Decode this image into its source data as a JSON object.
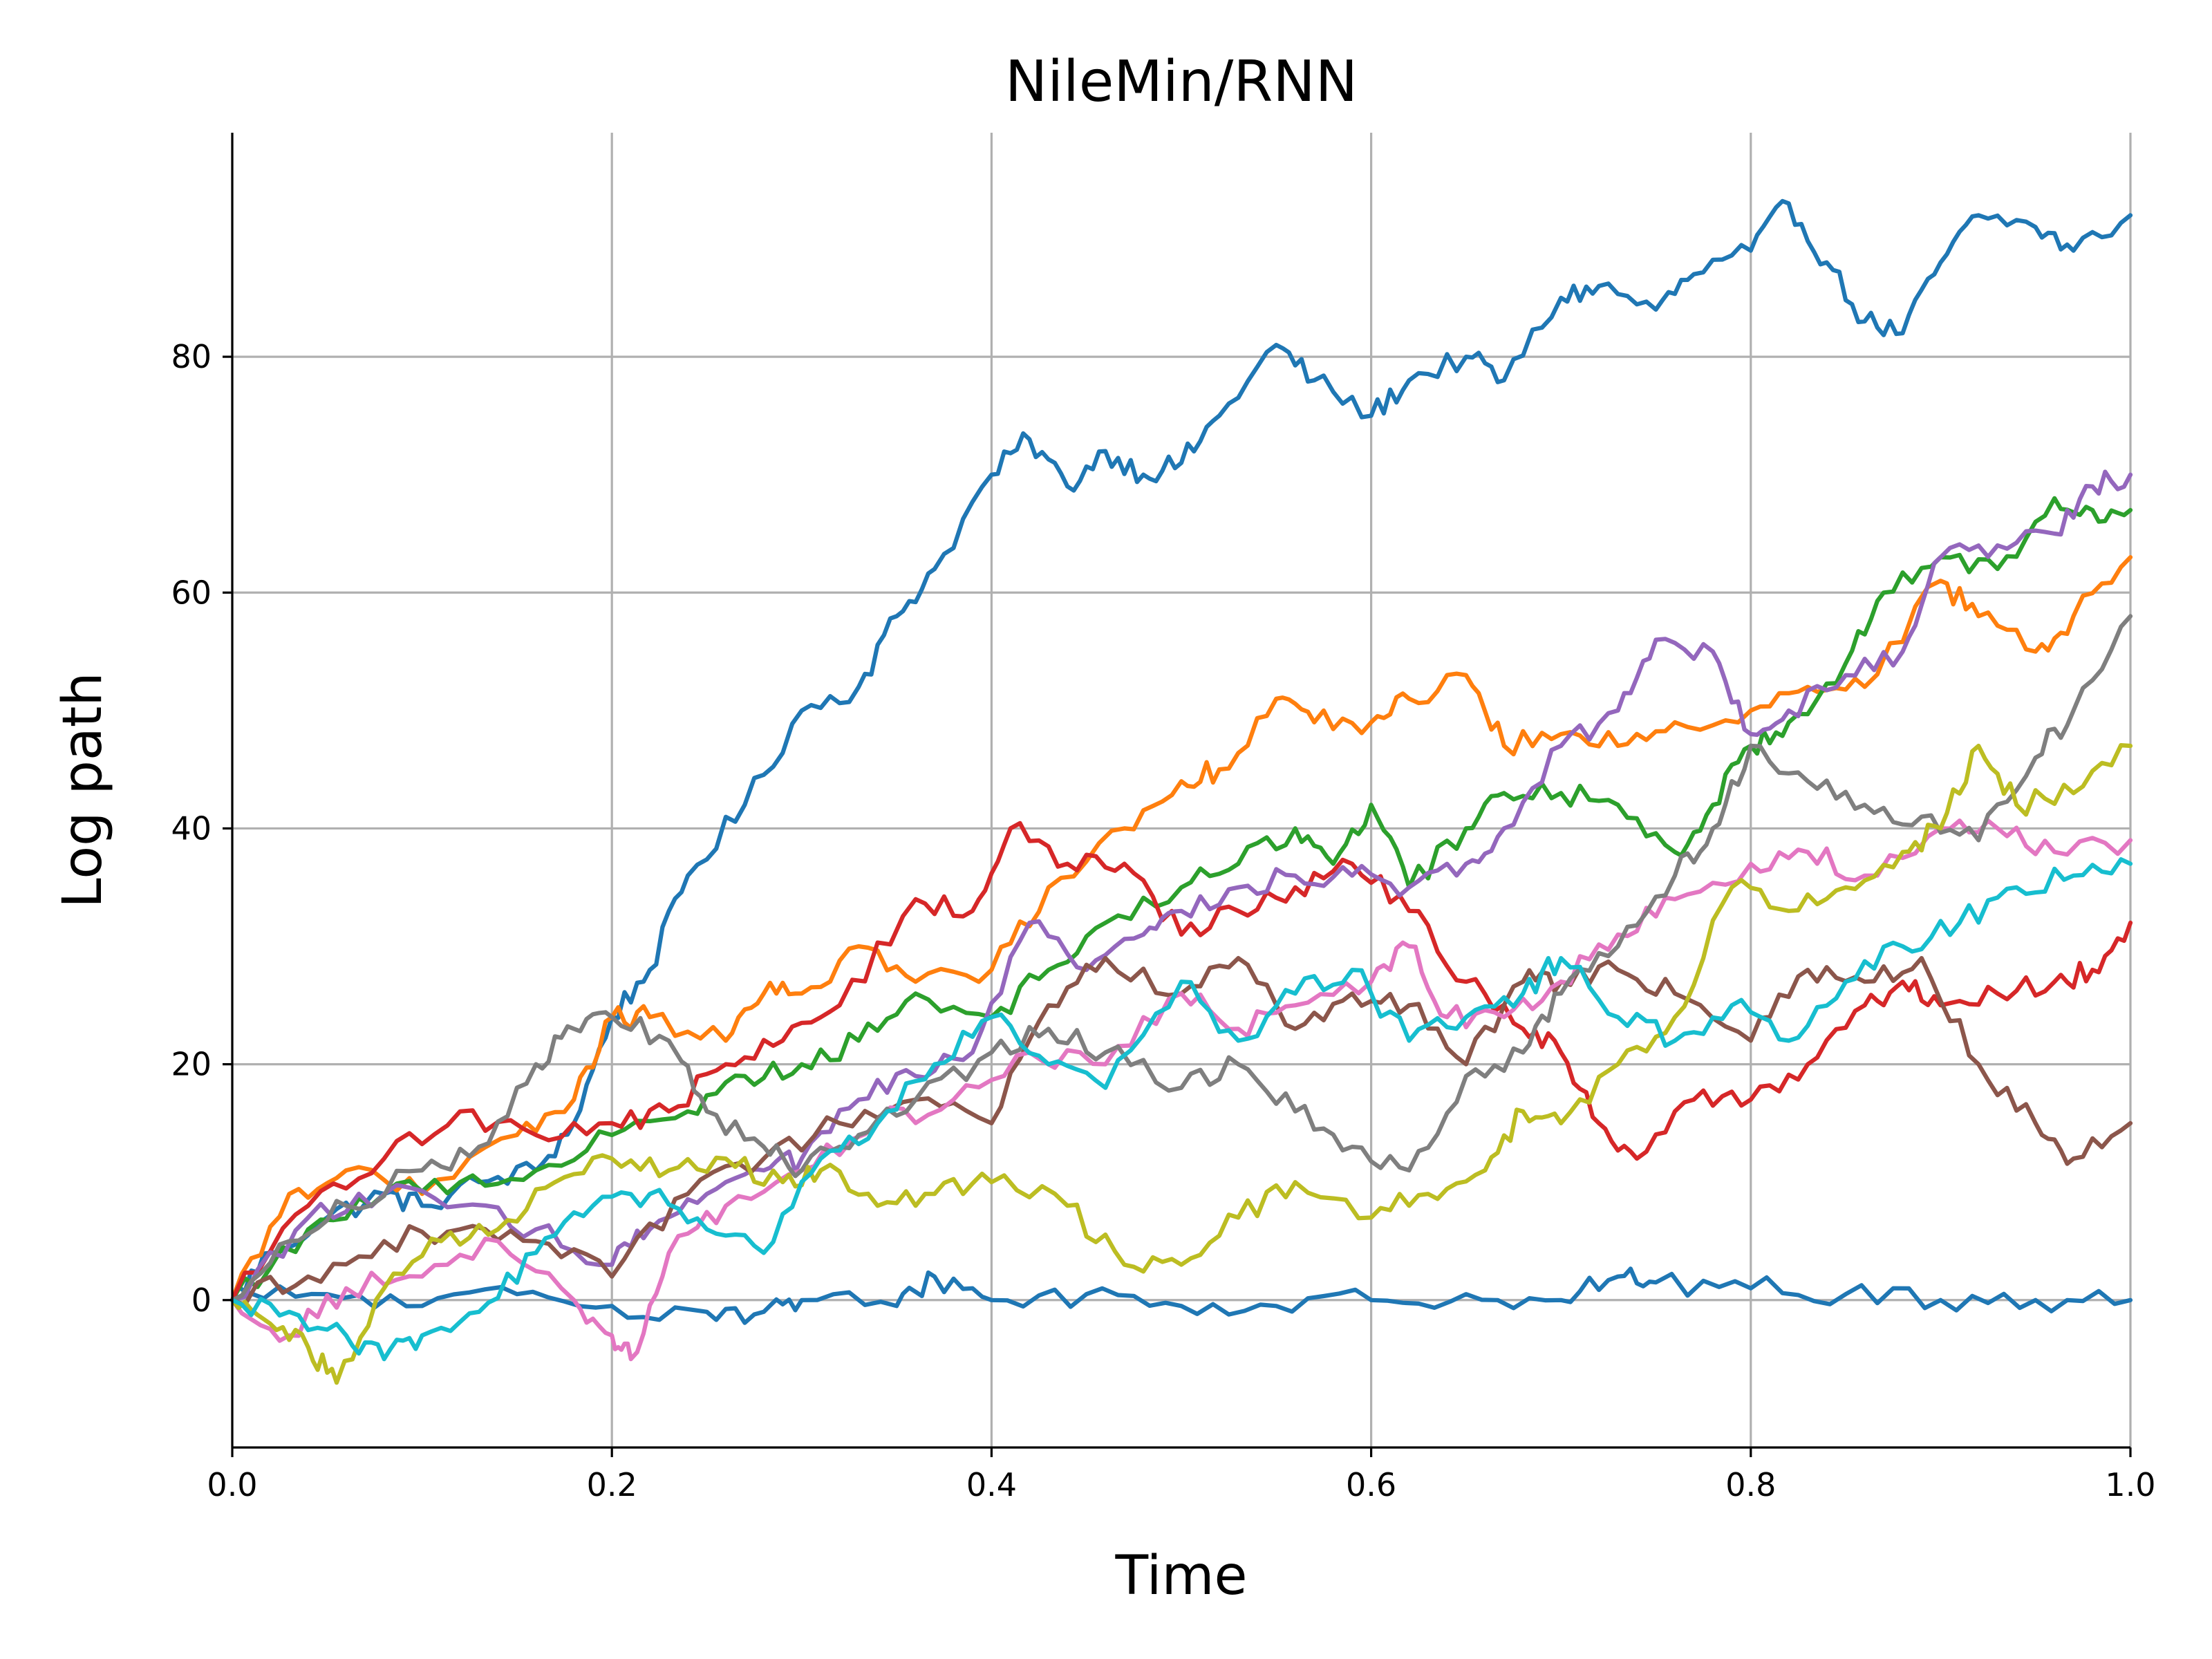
{
  "chart_data": {
    "type": "line",
    "title": "NileMin/RNN",
    "xlabel": "Time",
    "ylabel": "Log path",
    "xlim": [
      0.0,
      1.0
    ],
    "ylim": [
      -12.5,
      99
    ],
    "xticks": [
      0.0,
      0.2,
      0.4,
      0.6,
      0.8,
      1.0
    ],
    "xtick_labels": [
      "0.0",
      "0.2",
      "0.4",
      "0.6",
      "0.8",
      "1.0"
    ],
    "yticks": [
      0,
      20,
      40,
      60,
      80
    ],
    "ytick_labels": [
      "0",
      "20",
      "40",
      "60",
      "80"
    ],
    "grid": true,
    "legend": "none",
    "series": [
      {
        "color": "#1f77b4",
        "x": [
          0,
          0.02,
          0.05,
          0.08,
          0.1,
          0.13,
          0.16,
          0.18,
          0.2,
          0.22,
          0.24,
          0.27,
          0.3,
          0.33,
          0.35,
          0.37,
          0.4,
          0.42,
          0.44,
          0.46,
          0.48,
          0.5,
          0.52,
          0.55,
          0.57,
          0.6,
          0.62,
          0.65,
          0.67,
          0.7,
          0.72,
          0.75,
          0.77,
          0.8,
          0.82,
          0.84,
          0.86,
          0.88,
          0.9,
          0.92,
          0.95,
          0.97,
          1.0
        ],
        "y": [
          0,
          4,
          7,
          9,
          8,
          10,
          11,
          15,
          24,
          28,
          36,
          42,
          50,
          52,
          58,
          62,
          70,
          73,
          69,
          72,
          70,
          71,
          75,
          81,
          78,
          75,
          78,
          80,
          78,
          85,
          86,
          84,
          87,
          89,
          93,
          88,
          83,
          82,
          88,
          92,
          91,
          89,
          92
        ]
      },
      {
        "color": "#1f77b4",
        "x": [
          0,
          0.05,
          0.1,
          0.15,
          0.2,
          0.25,
          0.28,
          0.3,
          0.35,
          0.37,
          0.4,
          0.45,
          0.5,
          0.55,
          0.6,
          0.65,
          0.7,
          0.73,
          0.75,
          0.8,
          0.85,
          0.9,
          0.95,
          1.0
        ],
        "y": [
          0,
          0.5,
          -0.5,
          0.5,
          -0.5,
          -1,
          -1,
          0,
          -0.5,
          2,
          0,
          0.5,
          -0.5,
          -0.5,
          0,
          0.5,
          0,
          2,
          1.5,
          1,
          0.5,
          0,
          0,
          0
        ]
      },
      {
        "color": "#ff7f0e",
        "x": [
          0,
          0.03,
          0.06,
          0.1,
          0.15,
          0.18,
          0.2,
          0.22,
          0.26,
          0.28,
          0.3,
          0.33,
          0.36,
          0.4,
          0.43,
          0.47,
          0.5,
          0.52,
          0.55,
          0.57,
          0.6,
          0.62,
          0.65,
          0.67,
          0.7,
          0.73,
          0.76,
          0.8,
          0.83,
          0.86,
          0.9,
          0.92,
          0.95,
          0.97,
          1.0
        ],
        "y": [
          0,
          9,
          11,
          9,
          14,
          17,
          24,
          24,
          22,
          26,
          26,
          30,
          27,
          28,
          35,
          40,
          44,
          45,
          51,
          49,
          49,
          51,
          53,
          47,
          48,
          47,
          49,
          50,
          52,
          52,
          61,
          58,
          55,
          58,
          63
        ]
      },
      {
        "color": "#2ca02c",
        "x": [
          0,
          0.04,
          0.08,
          0.12,
          0.16,
          0.2,
          0.24,
          0.27,
          0.3,
          0.33,
          0.36,
          0.4,
          0.43,
          0.46,
          0.5,
          0.53,
          0.56,
          0.58,
          0.6,
          0.62,
          0.65,
          0.67,
          0.7,
          0.73,
          0.76,
          0.78,
          0.8,
          0.82,
          0.85,
          0.87,
          0.9,
          0.93,
          0.96,
          0.98,
          1.0
        ],
        "y": [
          0,
          6,
          9,
          10,
          11,
          14,
          16,
          19,
          20,
          22,
          26,
          24,
          28,
          32,
          35,
          37,
          40,
          37,
          42,
          35,
          40,
          43,
          43,
          42,
          38,
          42,
          47,
          49,
          54,
          60,
          63,
          62,
          68,
          67,
          67
        ]
      },
      {
        "color": "#d62728",
        "x": [
          0,
          0.04,
          0.08,
          0.12,
          0.16,
          0.2,
          0.23,
          0.26,
          0.29,
          0.32,
          0.36,
          0.39,
          0.41,
          0.44,
          0.47,
          0.5,
          0.53,
          0.56,
          0.59,
          0.62,
          0.65,
          0.68,
          0.7,
          0.72,
          0.74,
          0.77,
          0.8,
          0.83,
          0.86,
          0.88,
          0.9,
          0.93,
          0.96,
          0.98,
          1.0
        ],
        "y": [
          0,
          8,
          12,
          16,
          14,
          15,
          16,
          20,
          22,
          25,
          34,
          33,
          40,
          37,
          37,
          31,
          33,
          35,
          37,
          33,
          27,
          23,
          21,
          15,
          12,
          17,
          17,
          20,
          25,
          27,
          25,
          26,
          27,
          28,
          32
        ]
      },
      {
        "color": "#9467bd",
        "x": [
          0,
          0.04,
          0.08,
          0.12,
          0.16,
          0.2,
          0.22,
          0.25,
          0.28,
          0.3,
          0.33,
          0.36,
          0.39,
          0.42,
          0.45,
          0.48,
          0.5,
          0.53,
          0.56,
          0.59,
          0.62,
          0.65,
          0.67,
          0.7,
          0.73,
          0.75,
          0.78,
          0.8,
          0.82,
          0.85,
          0.88,
          0.9,
          0.93,
          0.96,
          0.98,
          1.0
        ],
        "y": [
          0,
          7,
          9,
          8,
          6,
          3,
          6,
          9,
          11,
          12,
          17,
          19,
          21,
          32,
          28,
          31,
          33,
          35,
          36,
          36,
          35,
          37,
          40,
          47,
          50,
          56,
          55,
          48,
          50,
          53,
          55,
          63,
          64,
          65,
          69,
          70
        ]
      },
      {
        "color": "#8c564b",
        "x": [
          0,
          0.04,
          0.08,
          0.12,
          0.16,
          0.2,
          0.24,
          0.28,
          0.32,
          0.36,
          0.4,
          0.43,
          0.46,
          0.5,
          0.53,
          0.56,
          0.59,
          0.62,
          0.65,
          0.68,
          0.7,
          0.73,
          0.76,
          0.8,
          0.83,
          0.86,
          0.89,
          0.92,
          0.95,
          0.97,
          1.0
        ],
        "y": [
          0,
          2,
          5,
          6,
          5,
          2,
          9,
          12,
          15,
          17,
          15,
          25,
          29,
          26,
          29,
          23,
          26,
          25,
          20,
          27,
          27,
          28,
          26,
          22,
          28,
          27,
          29,
          20,
          15,
          12,
          15
        ]
      },
      {
        "color": "#e377c2",
        "x": [
          0,
          0.03,
          0.06,
          0.1,
          0.14,
          0.18,
          0.2,
          0.21,
          0.23,
          0.26,
          0.3,
          0.34,
          0.38,
          0.42,
          0.46,
          0.5,
          0.53,
          0.56,
          0.6,
          0.62,
          0.64,
          0.67,
          0.7,
          0.73,
          0.76,
          0.8,
          0.83,
          0.86,
          0.9,
          0.93,
          0.96,
          1.0
        ],
        "y": [
          0,
          -3,
          1,
          2,
          5,
          0,
          -3,
          -5,
          4,
          8,
          11,
          15,
          17,
          21,
          20,
          26,
          23,
          25,
          27,
          30,
          24,
          24,
          27,
          31,
          34,
          37,
          38,
          36,
          40,
          40,
          38,
          39
        ]
      },
      {
        "color": "#7f7f7f",
        "x": [
          0,
          0.03,
          0.06,
          0.1,
          0.13,
          0.16,
          0.18,
          0.2,
          0.23,
          0.25,
          0.28,
          0.3,
          0.33,
          0.36,
          0.4,
          0.43,
          0.46,
          0.5,
          0.53,
          0.56,
          0.59,
          0.62,
          0.65,
          0.68,
          0.7,
          0.73,
          0.76,
          0.78,
          0.8,
          0.83,
          0.86,
          0.89,
          0.92,
          0.95,
          0.97,
          1.0
        ],
        "y": [
          0,
          5,
          8,
          11,
          13,
          20,
          23,
          24,
          22,
          16,
          13,
          11,
          14,
          17,
          21,
          23,
          21,
          18,
          20,
          16,
          13,
          11,
          19,
          21,
          26,
          30,
          36,
          40,
          47,
          44,
          42,
          41,
          39,
          46,
          50,
          58
        ]
      },
      {
        "color": "#bcbd22",
        "x": [
          0,
          0.02,
          0.04,
          0.055,
          0.08,
          0.11,
          0.14,
          0.17,
          0.2,
          0.23,
          0.26,
          0.29,
          0.31,
          0.34,
          0.37,
          0.4,
          0.44,
          0.47,
          0.5,
          0.53,
          0.56,
          0.6,
          0.63,
          0.66,
          0.68,
          0.7,
          0.73,
          0.76,
          0.79,
          0.82,
          0.85,
          0.88,
          0.9,
          0.92,
          0.94,
          0.97,
          1.0
        ],
        "y": [
          0,
          -2,
          -4,
          -7,
          1,
          5,
          6,
          10,
          12,
          11,
          12,
          10,
          11,
          8,
          9,
          10,
          8,
          3,
          3,
          7,
          10,
          7,
          9,
          11,
          16,
          15,
          20,
          24,
          35,
          33,
          35,
          38,
          40,
          47,
          42,
          43,
          47
        ]
      },
      {
        "color": "#17becf",
        "x": [
          0,
          0.03,
          0.06,
          0.08,
          0.1,
          0.13,
          0.16,
          0.19,
          0.22,
          0.25,
          0.28,
          0.31,
          0.34,
          0.37,
          0.4,
          0.43,
          0.46,
          0.5,
          0.53,
          0.56,
          0.59,
          0.62,
          0.65,
          0.68,
          0.7,
          0.73,
          0.76,
          0.79,
          0.82,
          0.85,
          0.88,
          0.91,
          0.94,
          0.97,
          1.0
        ],
        "y": [
          0,
          -1,
          -3,
          -5,
          -3,
          -1,
          4,
          8,
          9,
          6,
          4,
          12,
          15,
          20,
          24,
          20,
          18,
          27,
          22,
          26,
          28,
          22,
          24,
          26,
          29,
          24,
          22,
          25,
          22,
          27,
          30,
          32,
          35,
          36,
          37
        ]
      }
    ]
  }
}
